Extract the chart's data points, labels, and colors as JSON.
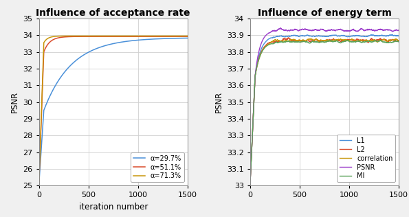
{
  "left_title": "Influence of acceptance rate",
  "right_title": "Influence of energy term",
  "xlabel": "iteration number",
  "ylabel": "PSNR",
  "left_ylim": [
    25,
    35
  ],
  "left_xlim": [
    0,
    1500
  ],
  "right_ylim": [
    33.0,
    34.0
  ],
  "right_xlim": [
    0,
    1500
  ],
  "left_yticks": [
    25,
    26,
    27,
    28,
    29,
    30,
    31,
    32,
    33,
    34,
    35
  ],
  "right_yticks": [
    33.0,
    33.1,
    33.2,
    33.3,
    33.4,
    33.5,
    33.6,
    33.7,
    33.8,
    33.9,
    34.0
  ],
  "right_yticklabels": [
    "33",
    "33.1",
    "33.2",
    "33.3",
    "33.4",
    "33.5",
    "33.6",
    "33.7",
    "33.8",
    "33.9",
    "34"
  ],
  "left_legend": [
    "α=29.7%",
    "α=51.1%",
    "α=71.3%"
  ],
  "left_colors": [
    "#4a90d9",
    "#d94a2a",
    "#c8960a"
  ],
  "right_legend": [
    "L1",
    "L2",
    "correlation",
    "PSNR",
    "MI"
  ],
  "right_colors": [
    "#4a90d9",
    "#d94a2a",
    "#c8960a",
    "#9b3dca",
    "#5ba35b"
  ],
  "bg_color": "#ffffff",
  "grid_color": "#d0d0d0",
  "title_fontsize": 10,
  "label_fontsize": 8.5,
  "tick_fontsize": 8
}
